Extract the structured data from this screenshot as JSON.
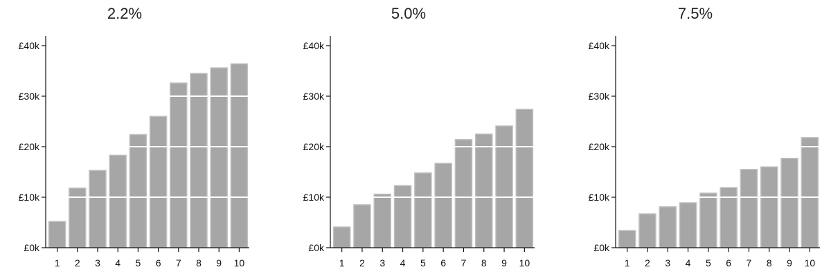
{
  "chart_data": [
    {
      "type": "bar",
      "title": "2.2%",
      "categories": [
        "1",
        "2",
        "3",
        "4",
        "5",
        "6",
        "7",
        "8",
        "9",
        "10"
      ],
      "values": [
        5200,
        11800,
        15300,
        18300,
        22400,
        26000,
        32600,
        34500,
        35600,
        36400
      ],
      "ylim": [
        0,
        40000
      ],
      "yticks": [
        0,
        10000,
        20000,
        30000,
        40000
      ],
      "ytick_labels": [
        "£0k",
        "£10k",
        "£20k",
        "£30k",
        "£40k"
      ],
      "grid": false,
      "bar_color": "#a6a6a6",
      "bar_edge_color": "#bfbfbf"
    },
    {
      "type": "bar",
      "title": "5.0%",
      "categories": [
        "1",
        "2",
        "3",
        "4",
        "5",
        "6",
        "7",
        "8",
        "9",
        "10"
      ],
      "values": [
        4100,
        8500,
        10600,
        12300,
        14800,
        16700,
        21400,
        22500,
        24100,
        27400
      ],
      "ylim": [
        0,
        40000
      ],
      "yticks": [
        0,
        10000,
        20000,
        30000,
        40000
      ],
      "ytick_labels": [
        "£0k",
        "£10k",
        "£20k",
        "£30k",
        "£40k"
      ],
      "grid": false,
      "bar_color": "#a6a6a6",
      "bar_edge_color": "#bfbfbf"
    },
    {
      "type": "bar",
      "title": "7.5%",
      "categories": [
        "1",
        "2",
        "3",
        "4",
        "5",
        "6",
        "7",
        "8",
        "9",
        "10"
      ],
      "values": [
        3400,
        6700,
        8100,
        8900,
        10800,
        11900,
        15500,
        16000,
        17700,
        21800
      ],
      "ylim": [
        0,
        40000
      ],
      "yticks": [
        0,
        10000,
        20000,
        30000,
        40000
      ],
      "ytick_labels": [
        "£0k",
        "£10k",
        "£20k",
        "£30k",
        "£40k"
      ],
      "grid": false,
      "bar_color": "#a6a6a6",
      "bar_edge_color": "#bfbfbf"
    }
  ]
}
